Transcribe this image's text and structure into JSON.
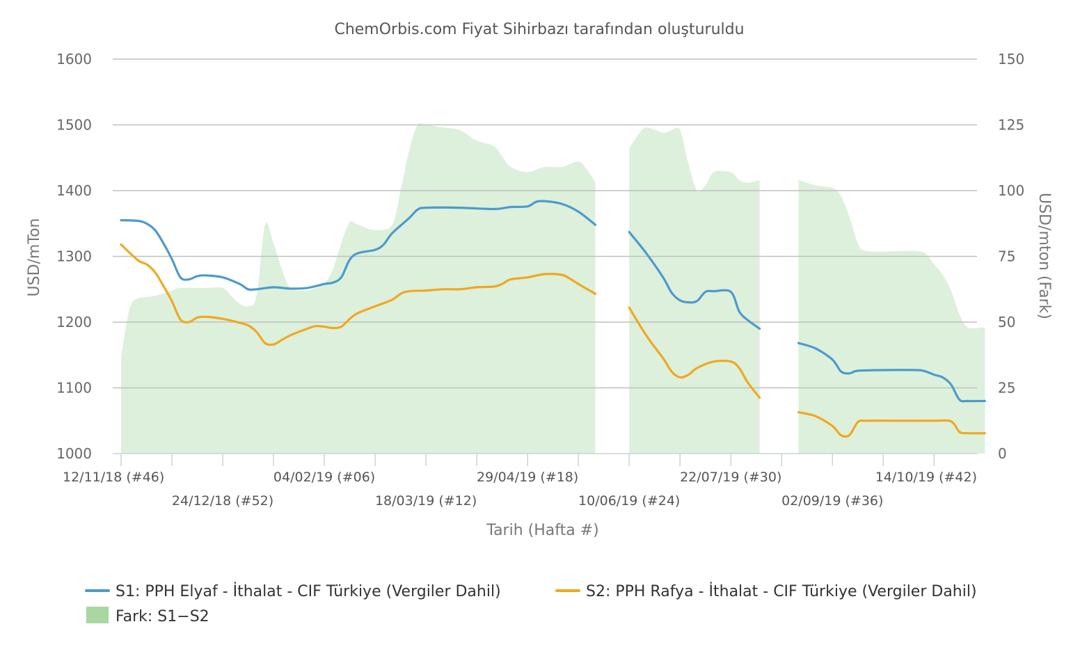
{
  "chart_data": {
    "type": "line",
    "title": "ChemOrbis.com Fiyat Sihirbazı tarafından oluşturuldu",
    "xlabel": "Tarih (Hafta #)",
    "ylabel_left": "USD/mTon",
    "ylabel_right": "USD/mton (Fark)",
    "ylim_left": [
      1000,
      1600
    ],
    "ylim_right": [
      0,
      150
    ],
    "yticks_left": [
      "1000",
      "1100",
      "1200",
      "1300",
      "1400",
      "1500",
      "1600"
    ],
    "yticks_right": [
      "0",
      "25",
      "50",
      "75",
      "100",
      "125",
      "150"
    ],
    "xlim_weeks": [
      0,
      50.5
    ],
    "xticks": [
      {
        "week": 0,
        "label": "12/11/18 (#46)"
      },
      {
        "week": 6,
        "label": "24/12/18 (#52)"
      },
      {
        "week": 12,
        "label": "04/02/19 (#06)"
      },
      {
        "week": 18,
        "label": "18/03/19 (#12)"
      },
      {
        "week": 24,
        "label": "29/04/19 (#18)"
      },
      {
        "week": 30,
        "label": "10/06/19 (#24)"
      },
      {
        "week": 36,
        "label": "22/07/19 (#30)"
      },
      {
        "week": 42,
        "label": "02/09/19 (#36)"
      },
      {
        "week": 48,
        "label": "14/10/19 (#42)"
      }
    ],
    "grid": true,
    "legend_position": "bottom",
    "series": [
      {
        "name": "S1: PPH Elyaf - İthalat - CIF Türkiye (Vergiler Dahil)",
        "color": "#4e9acb",
        "axis": "left",
        "segments": [
          [
            [
              0,
              1355
            ],
            [
              1,
              1354
            ],
            [
              1.5,
              1350
            ],
            [
              2,
              1340
            ],
            [
              2.5,
              1320
            ],
            [
              3,
              1296
            ],
            [
              3.5,
              1268
            ],
            [
              4,
              1265
            ],
            [
              4.5,
              1270
            ],
            [
              5,
              1271
            ],
            [
              6,
              1268
            ],
            [
              7,
              1258
            ],
            [
              7.5,
              1250
            ],
            [
              8,
              1250
            ],
            [
              9,
              1253
            ],
            [
              10,
              1251
            ],
            [
              11,
              1252
            ],
            [
              12,
              1258
            ],
            [
              12.5,
              1260
            ],
            [
              13,
              1268
            ],
            [
              13.5,
              1295
            ],
            [
              14,
              1305
            ],
            [
              15,
              1310
            ],
            [
              15.5,
              1318
            ],
            [
              16,
              1335
            ],
            [
              17,
              1358
            ],
            [
              17.5,
              1371
            ],
            [
              18,
              1374
            ],
            [
              20,
              1374
            ],
            [
              22,
              1372
            ],
            [
              23,
              1375
            ],
            [
              24,
              1376
            ],
            [
              24.5,
              1383
            ],
            [
              25,
              1384
            ],
            [
              26,
              1380
            ],
            [
              27,
              1368
            ],
            [
              28,
              1348
            ]
          ],
          [
            [
              30,
              1337
            ],
            [
              31,
              1305
            ],
            [
              32,
              1268
            ],
            [
              32.5,
              1245
            ],
            [
              33,
              1233
            ],
            [
              33.5,
              1230
            ],
            [
              34,
              1232
            ],
            [
              34.5,
              1246
            ],
            [
              35,
              1247
            ],
            [
              36,
              1246
            ],
            [
              36.5,
              1216
            ],
            [
              37,
              1203
            ],
            [
              37.7,
              1190
            ]
          ],
          [
            [
              40,
              1168
            ],
            [
              41,
              1160
            ],
            [
              42,
              1143
            ],
            [
              42.5,
              1125
            ],
            [
              43,
              1122
            ],
            [
              43.5,
              1126
            ],
            [
              45,
              1127
            ],
            [
              47,
              1127
            ],
            [
              47.5,
              1125
            ],
            [
              48,
              1120
            ],
            [
              48.5,
              1116
            ],
            [
              49,
              1105
            ],
            [
              49.5,
              1082
            ],
            [
              50,
              1080
            ],
            [
              51,
              1080
            ]
          ]
        ]
      },
      {
        "name": "S2: PPH Rafya - İthalat - CIF Türkiye (Vergiler Dahil)",
        "color": "#f0a81e",
        "axis": "left",
        "segments": [
          [
            [
              0,
              1318
            ],
            [
              1,
              1294
            ],
            [
              1.5,
              1288
            ],
            [
              2,
              1276
            ],
            [
              2.5,
              1255
            ],
            [
              3,
              1232
            ],
            [
              3.5,
              1204
            ],
            [
              4,
              1200
            ],
            [
              4.5,
              1207
            ],
            [
              5,
              1208
            ],
            [
              6,
              1205
            ],
            [
              7,
              1199
            ],
            [
              7.5,
              1195
            ],
            [
              8,
              1185
            ],
            [
              8.5,
              1168
            ],
            [
              9,
              1166
            ],
            [
              9.5,
              1173
            ],
            [
              10,
              1180
            ],
            [
              11,
              1190
            ],
            [
              11.5,
              1194
            ],
            [
              12,
              1193
            ],
            [
              12.5,
              1191
            ],
            [
              13,
              1193
            ],
            [
              13.5,
              1205
            ],
            [
              14,
              1214
            ],
            [
              15,
              1224
            ],
            [
              16,
              1234
            ],
            [
              16.5,
              1243
            ],
            [
              17,
              1247
            ],
            [
              18,
              1248
            ],
            [
              19,
              1250
            ],
            [
              20,
              1250
            ],
            [
              21,
              1253
            ],
            [
              22,
              1254
            ],
            [
              22.5,
              1258
            ],
            [
              23,
              1265
            ],
            [
              24,
              1268
            ],
            [
              25,
              1273
            ],
            [
              26,
              1272
            ],
            [
              26.5,
              1266
            ],
            [
              27,
              1258
            ],
            [
              28,
              1243
            ]
          ],
          [
            [
              30,
              1222
            ],
            [
              31,
              1180
            ],
            [
              32,
              1145
            ],
            [
              32.5,
              1125
            ],
            [
              33,
              1116
            ],
            [
              33.5,
              1120
            ],
            [
              34,
              1130
            ],
            [
              35,
              1140
            ],
            [
              36,
              1140
            ],
            [
              36.5,
              1130
            ],
            [
              37,
              1108
            ],
            [
              37.7,
              1085
            ]
          ],
          [
            [
              40,
              1063
            ],
            [
              41,
              1057
            ],
            [
              42,
              1042
            ],
            [
              42.5,
              1028
            ],
            [
              43,
              1028
            ],
            [
              43.5,
              1048
            ],
            [
              44,
              1050
            ],
            [
              46,
              1050
            ],
            [
              47,
              1050
            ],
            [
              48,
              1050
            ],
            [
              49,
              1049
            ],
            [
              49.5,
              1033
            ],
            [
              50,
              1031
            ],
            [
              51,
              1031
            ]
          ]
        ]
      },
      {
        "name": "Fark: S1−S2",
        "color": "#dcf0dc",
        "legend_color": "#a8d8a0",
        "type": "area",
        "axis": "right",
        "segments": [
          [
            [
              0,
              37
            ],
            [
              0.5,
              55
            ],
            [
              1,
              59
            ],
            [
              2,
              60
            ],
            [
              3,
              62
            ],
            [
              3.5,
              63
            ],
            [
              5,
              63
            ],
            [
              6,
              63
            ],
            [
              6.5,
              60
            ],
            [
              7,
              57
            ],
            [
              7.5,
              56
            ],
            [
              8,
              60
            ],
            [
              8.5,
              87
            ],
            [
              9,
              80
            ],
            [
              9.5,
              70
            ],
            [
              10,
              63
            ],
            [
              11,
              62
            ],
            [
              12,
              65
            ],
            [
              12.5,
              70
            ],
            [
              13,
              80
            ],
            [
              13.5,
              88
            ],
            [
              14,
              87
            ],
            [
              15,
              85
            ],
            [
              16,
              87
            ],
            [
              16.5,
              100
            ],
            [
              17,
              115
            ],
            [
              17.5,
              125
            ],
            [
              18,
              125
            ],
            [
              19,
              124
            ],
            [
              20,
              123
            ],
            [
              21,
              119
            ],
            [
              22,
              117
            ],
            [
              22.5,
              113
            ],
            [
              23,
              109
            ],
            [
              24,
              107
            ],
            [
              25,
              109
            ],
            [
              26,
              109
            ],
            [
              27,
              111
            ],
            [
              27.5,
              108
            ],
            [
              28,
              103
            ]
          ],
          [
            [
              30,
              116
            ],
            [
              30.5,
              121
            ],
            [
              31,
              124
            ],
            [
              32,
              122
            ],
            [
              32.5,
              123
            ],
            [
              33,
              123
            ],
            [
              33.5,
              110
            ],
            [
              34,
              100
            ],
            [
              34.5,
              102
            ],
            [
              35,
              107
            ],
            [
              36,
              107
            ],
            [
              36.5,
              104
            ],
            [
              37,
              103
            ],
            [
              37.7,
              104
            ]
          ],
          [
            [
              40,
              104
            ],
            [
              41,
              102
            ],
            [
              42,
              101
            ],
            [
              42.5,
              98
            ],
            [
              43,
              90
            ],
            [
              43.5,
              80
            ],
            [
              44,
              77
            ],
            [
              46,
              77
            ],
            [
              47,
              77
            ],
            [
              47.5,
              76
            ],
            [
              48,
              72
            ],
            [
              48.5,
              68
            ],
            [
              49,
              62
            ],
            [
              49.5,
              53
            ],
            [
              50,
              48
            ],
            [
              51,
              48
            ]
          ]
        ]
      }
    ]
  }
}
